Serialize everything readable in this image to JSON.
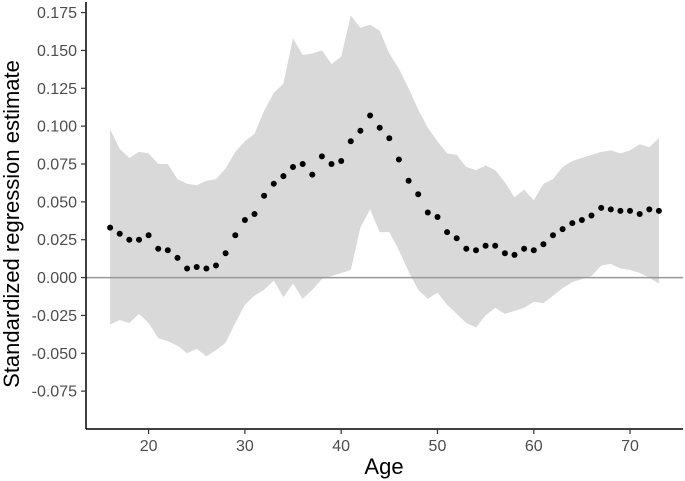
{
  "chart_data": {
    "type": "scatter",
    "title": "",
    "xlabel": "Age",
    "ylabel": "Standardized regression estimate",
    "xlim": [
      13.5,
      75.5
    ],
    "ylim": [
      -0.1,
      0.18
    ],
    "x_ticks": [
      20,
      30,
      40,
      50,
      60,
      70
    ],
    "x_tick_labels": [
      "20",
      "30",
      "40",
      "50",
      "60",
      "70"
    ],
    "y_ticks": [
      -0.075,
      -0.05,
      -0.025,
      0.0,
      0.025,
      0.05,
      0.075,
      0.1,
      0.125,
      0.15,
      0.175
    ],
    "y_tick_labels": [
      "-0.075",
      "-0.050",
      "-0.025",
      "0.000",
      "0.025",
      "0.050",
      "0.075",
      "0.100",
      "0.125",
      "0.150",
      "0.175"
    ],
    "grid": false,
    "reference_line_y": 0.0,
    "colors": {
      "points": "#000000",
      "band": "#d9d9d9",
      "refline": "#999999",
      "axis": "#000000"
    },
    "series": [
      {
        "x": [
          16,
          17,
          18,
          19,
          20,
          21,
          22,
          23,
          24,
          25,
          26,
          27,
          28,
          29,
          30,
          31,
          32,
          33,
          34,
          35,
          36,
          37,
          38,
          39,
          40,
          41,
          42,
          43,
          44,
          45,
          46,
          47,
          48,
          49,
          50,
          51,
          52,
          53,
          54,
          55,
          56,
          57,
          58,
          59,
          60,
          61,
          62,
          63,
          64,
          65,
          66,
          67,
          68,
          69,
          70,
          71,
          72,
          73
        ],
        "y": [
          0.033,
          0.029,
          0.025,
          0.025,
          0.028,
          0.019,
          0.018,
          0.013,
          0.006,
          0.007,
          0.006,
          0.008,
          0.016,
          0.028,
          0.038,
          0.042,
          0.054,
          0.062,
          0.067,
          0.073,
          0.075,
          0.068,
          0.08,
          0.075,
          0.077,
          0.09,
          0.097,
          0.107,
          0.099,
          0.092,
          0.078,
          0.064,
          0.055,
          0.043,
          0.04,
          0.03,
          0.026,
          0.019,
          0.018,
          0.021,
          0.021,
          0.016,
          0.015,
          0.019,
          0.018,
          0.022,
          0.028,
          0.032,
          0.036,
          0.038,
          0.041,
          0.046,
          0.045,
          0.044,
          0.044,
          0.042,
          0.045,
          0.044
        ]
      }
    ],
    "band": {
      "x": [
        16,
        17,
        18,
        19,
        20,
        21,
        22,
        23,
        24,
        25,
        26,
        27,
        28,
        29,
        30,
        31,
        32,
        33,
        34,
        35,
        36,
        37,
        38,
        39,
        40,
        41,
        42,
        43,
        44,
        45,
        46,
        47,
        48,
        49,
        50,
        51,
        52,
        53,
        54,
        55,
        56,
        57,
        58,
        59,
        60,
        61,
        62,
        63,
        64,
        65,
        66,
        67,
        68,
        69,
        70,
        71,
        72,
        73
      ],
      "upper": [
        0.098,
        0.085,
        0.079,
        0.083,
        0.082,
        0.075,
        0.075,
        0.065,
        0.062,
        0.061,
        0.064,
        0.065,
        0.072,
        0.083,
        0.09,
        0.095,
        0.11,
        0.122,
        0.128,
        0.158,
        0.147,
        0.148,
        0.15,
        0.141,
        0.146,
        0.173,
        0.165,
        0.167,
        0.163,
        0.148,
        0.138,
        0.125,
        0.111,
        0.099,
        0.09,
        0.082,
        0.081,
        0.073,
        0.071,
        0.074,
        0.071,
        0.063,
        0.053,
        0.058,
        0.051,
        0.062,
        0.065,
        0.073,
        0.077,
        0.079,
        0.081,
        0.083,
        0.084,
        0.082,
        0.084,
        0.088,
        0.086,
        0.092
      ],
      "lower": [
        -0.031,
        -0.028,
        -0.03,
        -0.024,
        -0.03,
        -0.04,
        -0.042,
        -0.045,
        -0.05,
        -0.047,
        -0.052,
        -0.048,
        -0.043,
        -0.03,
        -0.018,
        -0.012,
        -0.008,
        -0.002,
        -0.013,
        -0.004,
        -0.014,
        -0.008,
        -0.001,
        0.001,
        0.003,
        0.005,
        0.033,
        0.045,
        0.03,
        0.03,
        0.018,
        0.004,
        -0.008,
        -0.014,
        -0.01,
        -0.018,
        -0.024,
        -0.03,
        -0.033,
        -0.025,
        -0.02,
        -0.024,
        -0.022,
        -0.02,
        -0.016,
        -0.017,
        -0.012,
        -0.007,
        -0.003,
        -0.001,
        0.001,
        0.008,
        0.009,
        0.006,
        0.005,
        0.003,
        0.0,
        -0.004
      ]
    }
  }
}
